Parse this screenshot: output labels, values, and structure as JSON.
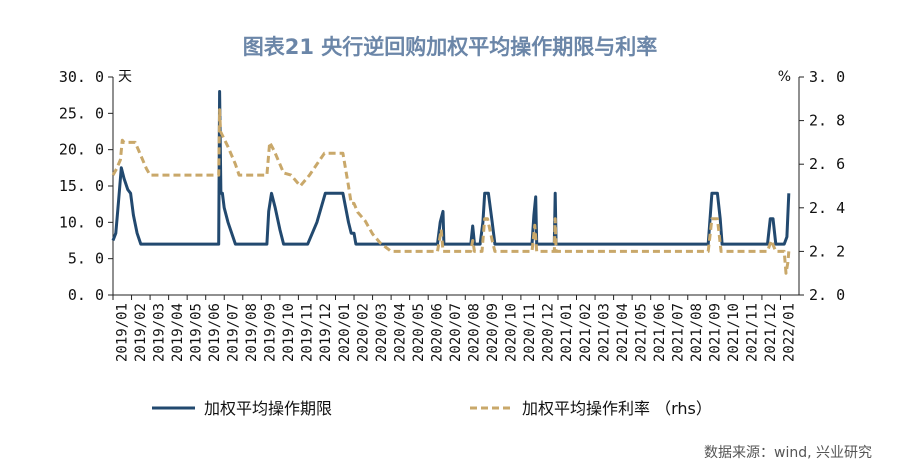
{
  "chart_data": {
    "type": "line",
    "title": "图表21  央行逆回购加权平均操作期限与利率",
    "source": "数据来源：wind, 兴业研究",
    "left_axis": {
      "unit": "天",
      "ylim": [
        0,
        30
      ],
      "ticks": [
        0,
        5,
        10,
        15,
        20,
        25,
        30
      ],
      "tick_labels": [
        "0. 0",
        "5. 0",
        "10. 0",
        "15. 0",
        "20. 0",
        "25. 0",
        "30. 0"
      ]
    },
    "right_axis": {
      "unit": "%",
      "ylim": [
        2.0,
        3.0
      ],
      "ticks": [
        2.0,
        2.2,
        2.4,
        2.6,
        2.8,
        3.0
      ],
      "tick_labels": [
        "2. 0",
        "2. 2",
        "2. 4",
        "2. 6",
        "2. 8",
        "3. 0"
      ]
    },
    "x_categories": [
      "2019/01",
      "2019/02",
      "2019/03",
      "2019/04",
      "2019/05",
      "2019/06",
      "2019/07",
      "2019/08",
      "2019/09",
      "2019/10",
      "2019/11",
      "2019/12",
      "2020/01",
      "2020/02",
      "2020/03",
      "2020/04",
      "2020/05",
      "2020/06",
      "2020/07",
      "2020/08",
      "2020/09",
      "2020/10",
      "2020/11",
      "2020/12",
      "2021/01",
      "2021/02",
      "2021/03",
      "2021/04",
      "2021/05",
      "2021/06",
      "2021/07",
      "2021/08",
      "2021/09",
      "2021/10",
      "2021/11",
      "2021/12",
      "2022/01"
    ],
    "series": [
      {
        "name": "加权平均操作期限",
        "axis": "left",
        "color": "#22496f",
        "style": "solid",
        "points": [
          [
            0.0,
            7.5
          ],
          [
            0.15,
            8.5
          ],
          [
            0.3,
            13
          ],
          [
            0.45,
            17.5
          ],
          [
            0.6,
            16
          ],
          [
            0.8,
            14.5
          ],
          [
            0.95,
            14
          ],
          [
            1.1,
            11
          ],
          [
            1.3,
            8.5
          ],
          [
            1.5,
            7
          ],
          [
            2.0,
            7
          ],
          [
            3.0,
            7
          ],
          [
            4.0,
            7
          ],
          [
            5.0,
            7
          ],
          [
            5.7,
            7
          ],
          [
            5.75,
            28
          ],
          [
            5.82,
            14
          ],
          [
            5.9,
            14
          ],
          [
            6.0,
            12
          ],
          [
            6.2,
            10
          ],
          [
            6.6,
            7
          ],
          [
            7.5,
            7
          ],
          [
            8.3,
            7
          ],
          [
            8.4,
            11.5
          ],
          [
            8.55,
            14
          ],
          [
            8.75,
            12
          ],
          [
            9.0,
            9
          ],
          [
            9.2,
            7
          ],
          [
            10.0,
            7
          ],
          [
            10.5,
            7
          ],
          [
            11.0,
            10
          ],
          [
            11.45,
            14
          ],
          [
            12.0,
            14
          ],
          [
            12.4,
            14
          ],
          [
            12.7,
            10
          ],
          [
            12.85,
            8.5
          ],
          [
            13.0,
            8.5
          ],
          [
            13.1,
            7
          ],
          [
            14.0,
            7
          ],
          [
            15.0,
            7
          ],
          [
            16.0,
            7
          ],
          [
            17.0,
            7
          ],
          [
            17.5,
            7
          ],
          [
            17.65,
            10
          ],
          [
            17.8,
            11.5
          ],
          [
            17.85,
            7
          ],
          [
            18.5,
            7
          ],
          [
            19.0,
            7
          ],
          [
            19.3,
            7
          ],
          [
            19.4,
            9.5
          ],
          [
            19.5,
            7
          ],
          [
            19.8,
            7
          ],
          [
            19.95,
            10
          ],
          [
            20.05,
            14
          ],
          [
            20.25,
            14
          ],
          [
            20.45,
            10
          ],
          [
            20.6,
            7
          ],
          [
            21.5,
            7
          ],
          [
            22.0,
            7
          ],
          [
            22.6,
            7
          ],
          [
            22.7,
            11
          ],
          [
            22.8,
            13.5
          ],
          [
            22.85,
            7
          ],
          [
            23.5,
            7
          ],
          [
            23.8,
            7
          ],
          [
            23.85,
            14
          ],
          [
            23.9,
            7
          ],
          [
            25.0,
            7
          ],
          [
            26.0,
            7
          ],
          [
            27.0,
            7
          ],
          [
            28.0,
            7
          ],
          [
            29.0,
            7
          ],
          [
            30.0,
            7
          ],
          [
            31.0,
            7
          ],
          [
            32.1,
            7
          ],
          [
            32.3,
            14
          ],
          [
            32.6,
            14
          ],
          [
            32.75,
            10.5
          ],
          [
            32.85,
            7
          ],
          [
            34.0,
            7
          ],
          [
            35.0,
            7
          ],
          [
            35.3,
            7
          ],
          [
            35.45,
            10.5
          ],
          [
            35.6,
            10.5
          ],
          [
            35.75,
            7
          ],
          [
            36.2,
            7
          ],
          [
            36.35,
            8
          ],
          [
            36.45,
            14
          ]
        ]
      },
      {
        "name": "加权平均操作利率  （rhs）",
        "axis": "right",
        "color": "#c9a86a",
        "style": "dashed",
        "points": [
          [
            0.0,
            2.55
          ],
          [
            0.2,
            2.58
          ],
          [
            0.4,
            2.62
          ],
          [
            0.5,
            2.71
          ],
          [
            0.6,
            2.7
          ],
          [
            1.2,
            2.7
          ],
          [
            1.5,
            2.64
          ],
          [
            1.8,
            2.58
          ],
          [
            2.0,
            2.55
          ],
          [
            3.0,
            2.55
          ],
          [
            4.0,
            2.55
          ],
          [
            5.0,
            2.55
          ],
          [
            5.7,
            2.55
          ],
          [
            5.75,
            2.85
          ],
          [
            5.8,
            2.75
          ],
          [
            6.2,
            2.68
          ],
          [
            6.6,
            2.6
          ],
          [
            6.8,
            2.55
          ],
          [
            7.5,
            2.55
          ],
          [
            8.3,
            2.55
          ],
          [
            8.45,
            2.7
          ],
          [
            8.7,
            2.66
          ],
          [
            9.0,
            2.6
          ],
          [
            9.2,
            2.56
          ],
          [
            9.6,
            2.55
          ],
          [
            10.1,
            2.5
          ],
          [
            10.6,
            2.55
          ],
          [
            11.0,
            2.6
          ],
          [
            11.4,
            2.65
          ],
          [
            12.0,
            2.65
          ],
          [
            12.4,
            2.65
          ],
          [
            12.7,
            2.5
          ],
          [
            12.85,
            2.42
          ],
          [
            13.0,
            2.42
          ],
          [
            13.2,
            2.38
          ],
          [
            13.6,
            2.34
          ],
          [
            14.0,
            2.28
          ],
          [
            14.4,
            2.24
          ],
          [
            15.0,
            2.2
          ],
          [
            16.0,
            2.2
          ],
          [
            17.0,
            2.2
          ],
          [
            17.5,
            2.2
          ],
          [
            17.7,
            2.3
          ],
          [
            17.8,
            2.2
          ],
          [
            18.5,
            2.2
          ],
          [
            19.3,
            2.2
          ],
          [
            19.4,
            2.25
          ],
          [
            19.5,
            2.2
          ],
          [
            19.9,
            2.2
          ],
          [
            20.05,
            2.35
          ],
          [
            20.2,
            2.35
          ],
          [
            20.45,
            2.25
          ],
          [
            20.6,
            2.2
          ],
          [
            21.5,
            2.2
          ],
          [
            22.6,
            2.2
          ],
          [
            22.75,
            2.32
          ],
          [
            22.85,
            2.2
          ],
          [
            23.8,
            2.2
          ],
          [
            23.85,
            2.35
          ],
          [
            23.9,
            2.2
          ],
          [
            25.0,
            2.2
          ],
          [
            27.0,
            2.2
          ],
          [
            29.0,
            2.2
          ],
          [
            31.0,
            2.2
          ],
          [
            32.1,
            2.2
          ],
          [
            32.3,
            2.35
          ],
          [
            32.6,
            2.35
          ],
          [
            32.8,
            2.2
          ],
          [
            34.0,
            2.2
          ],
          [
            35.3,
            2.2
          ],
          [
            35.5,
            2.25
          ],
          [
            35.75,
            2.2
          ],
          [
            36.2,
            2.2
          ],
          [
            36.3,
            2.1
          ],
          [
            36.4,
            2.15
          ],
          [
            36.45,
            2.2
          ]
        ]
      }
    ],
    "legend": {
      "position": "bottom"
    },
    "grid": false
  }
}
